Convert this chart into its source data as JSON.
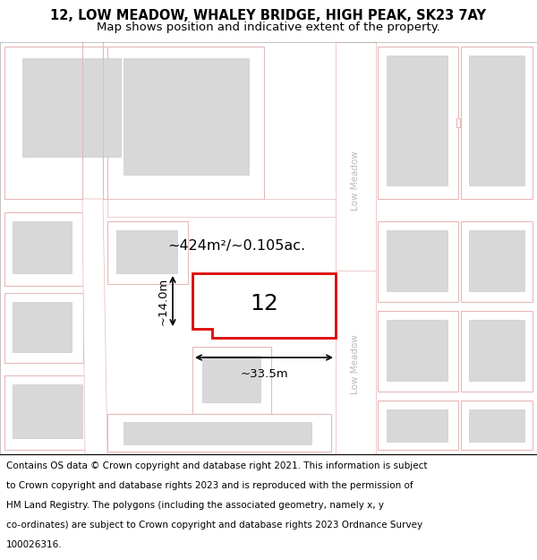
{
  "title": "12, LOW MEADOW, WHALEY BRIDGE, HIGH PEAK, SK23 7AY",
  "subtitle": "Map shows position and indicative extent of the property.",
  "footer": "Contains OS data © Crown copyright and database right 2021. This information is subject to Crown copyright and database rights 2023 and is reproduced with the permission of HM Land Registry. The polygons (including the associated geometry, namely x, y co-ordinates) are subject to Crown copyright and database rights 2023 Ordnance Survey 100026316.",
  "map_bg": "#f0f0f0",
  "road_color": "#ffffff",
  "road_border": "#e8b8b8",
  "plot_fill": "#ffffff",
  "plot_border": "#e8b8b8",
  "highlight_fill": "#ffffff",
  "highlight_border": "#dd0000",
  "building_fill": "#d8d8d8",
  "building_border": "#cccccc",
  "street_label_color": "#bbbbbb",
  "area_text": "~424m²/~0.105ac.",
  "number_label": "12",
  "dim_width": "~33.5m",
  "dim_height": "~14.0m",
  "title_fontsize": 10.5,
  "subtitle_fontsize": 9.5,
  "footer_fontsize": 7.5
}
